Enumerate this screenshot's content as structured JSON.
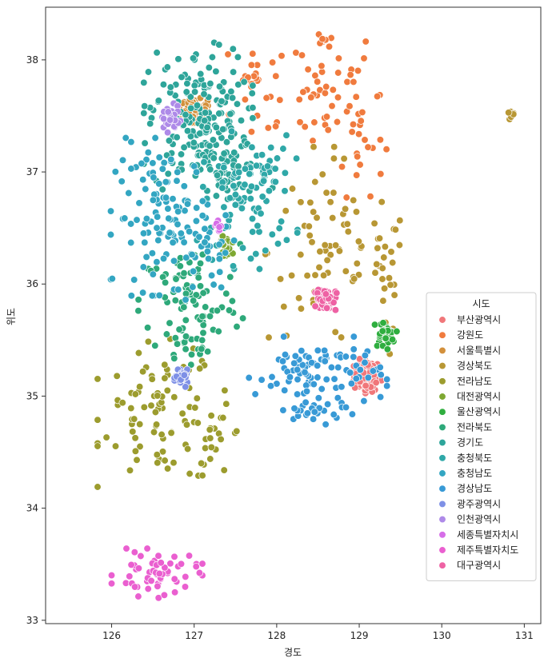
{
  "chart_data": {
    "type": "scatter",
    "title": "",
    "xlabel": "경도",
    "ylabel": "위도",
    "xlim": [
      125.2,
      131.2
    ],
    "ylim": [
      32.97,
      38.47
    ],
    "xticks": [
      "126",
      "127",
      "128",
      "129",
      "130",
      "131"
    ],
    "yticks": [
      "33",
      "34",
      "35",
      "36",
      "37",
      "38"
    ],
    "grid": false,
    "legend": {
      "title": "시도",
      "placement": "lower-right",
      "items": [
        {
          "name": "부산광역시",
          "color": "#f0777a"
        },
        {
          "name": "강원도",
          "color": "#f07b3e"
        },
        {
          "name": "서울특별시",
          "color": "#d3903b"
        },
        {
          "name": "경상북도",
          "color": "#b89734"
        },
        {
          "name": "전라남도",
          "color": "#9c9c2e"
        },
        {
          "name": "대전광역시",
          "color": "#7ea832"
        },
        {
          "name": "울산광역시",
          "color": "#2fae3f"
        },
        {
          "name": "전라북도",
          "color": "#2ea97a"
        },
        {
          "name": "경기도",
          "color": "#2ea59a"
        },
        {
          "name": "충청북도",
          "color": "#2fa8a8"
        },
        {
          "name": "충청남도",
          "color": "#33a6c2"
        },
        {
          "name": "경상남도",
          "color": "#389ad6"
        },
        {
          "name": "광주광역시",
          "color": "#7e90e6"
        },
        {
          "name": "인천광역시",
          "color": "#ae8ae8"
        },
        {
          "name": "세종특별자치시",
          "color": "#d66ee8"
        },
        {
          "name": "제주특별자치도",
          "color": "#ea5fd0"
        },
        {
          "name": "대구광역시",
          "color": "#ee62a4"
        }
      ]
    },
    "series": [
      {
        "name": "부산광역시",
        "clusters": [
          {
            "cx": 129.1,
            "cy": 35.18,
            "sx": 0.08,
            "sy": 0.07,
            "n": 110
          }
        ]
      },
      {
        "name": "강원도",
        "clusters": [
          {
            "cx": 128.4,
            "cy": 37.75,
            "sx": 0.45,
            "sy": 0.28,
            "n": 55
          },
          {
            "cx": 129.0,
            "cy": 37.3,
            "sx": 0.15,
            "sy": 0.25,
            "n": 22
          },
          {
            "cx": 127.7,
            "cy": 37.8,
            "sx": 0.08,
            "sy": 0.07,
            "n": 14
          },
          {
            "cx": 128.6,
            "cy": 38.18,
            "sx": 0.05,
            "sy": 0.04,
            "n": 8
          }
        ]
      },
      {
        "name": "서울특별시",
        "clusters": [
          {
            "cx": 127.0,
            "cy": 37.55,
            "sx": 0.08,
            "sy": 0.05,
            "n": 95
          }
        ]
      },
      {
        "name": "경상북도",
        "clusters": [
          {
            "cx": 128.6,
            "cy": 36.3,
            "sx": 0.35,
            "sy": 0.42,
            "n": 70
          },
          {
            "cx": 129.3,
            "cy": 36.1,
            "sx": 0.12,
            "sy": 0.3,
            "n": 25
          },
          {
            "cx": 130.85,
            "cy": 37.5,
            "sx": 0.03,
            "sy": 0.02,
            "n": 6
          }
        ]
      },
      {
        "name": "전라남도",
        "clusters": [
          {
            "cx": 126.6,
            "cy": 34.85,
            "sx": 0.35,
            "sy": 0.3,
            "n": 85
          },
          {
            "cx": 127.3,
            "cy": 34.6,
            "sx": 0.15,
            "sy": 0.15,
            "n": 20
          }
        ]
      },
      {
        "name": "대전광역시",
        "clusters": [
          {
            "cx": 127.38,
            "cy": 36.34,
            "sx": 0.04,
            "sy": 0.04,
            "n": 30
          }
        ]
      },
      {
        "name": "울산광역시",
        "clusters": [
          {
            "cx": 129.3,
            "cy": 35.55,
            "sx": 0.07,
            "sy": 0.06,
            "n": 30
          }
        ]
      },
      {
        "name": "전라북도",
        "clusters": [
          {
            "cx": 126.95,
            "cy": 35.85,
            "sx": 0.3,
            "sy": 0.25,
            "n": 80
          },
          {
            "cx": 127.0,
            "cy": 35.5,
            "sx": 0.2,
            "sy": 0.1,
            "n": 20
          }
        ]
      },
      {
        "name": "경기도",
        "clusters": [
          {
            "cx": 127.05,
            "cy": 37.45,
            "sx": 0.3,
            "sy": 0.32,
            "n": 190
          },
          {
            "cx": 127.4,
            "cy": 37.0,
            "sx": 0.25,
            "sy": 0.15,
            "n": 40
          }
        ]
      },
      {
        "name": "충청북도",
        "clusters": [
          {
            "cx": 127.65,
            "cy": 36.75,
            "sx": 0.28,
            "sy": 0.28,
            "n": 75
          },
          {
            "cx": 127.8,
            "cy": 37.0,
            "sx": 0.2,
            "sy": 0.1,
            "n": 20
          }
        ]
      },
      {
        "name": "충청남도",
        "clusters": [
          {
            "cx": 126.65,
            "cy": 36.6,
            "sx": 0.3,
            "sy": 0.32,
            "n": 110
          },
          {
            "cx": 127.15,
            "cy": 36.3,
            "sx": 0.2,
            "sy": 0.2,
            "n": 30
          }
        ]
      },
      {
        "name": "경상남도",
        "clusters": [
          {
            "cx": 128.5,
            "cy": 35.2,
            "sx": 0.38,
            "sy": 0.15,
            "n": 95
          },
          {
            "cx": 128.5,
            "cy": 34.88,
            "sx": 0.25,
            "sy": 0.06,
            "n": 25
          }
        ]
      },
      {
        "name": "광주광역시",
        "clusters": [
          {
            "cx": 126.85,
            "cy": 35.16,
            "sx": 0.04,
            "sy": 0.035,
            "n": 35
          }
        ]
      },
      {
        "name": "인천광역시",
        "clusters": [
          {
            "cx": 126.7,
            "cy": 37.48,
            "sx": 0.06,
            "sy": 0.06,
            "n": 40
          }
        ]
      },
      {
        "name": "세종특별자치시",
        "clusters": [
          {
            "cx": 127.28,
            "cy": 36.5,
            "sx": 0.03,
            "sy": 0.03,
            "n": 10
          }
        ]
      },
      {
        "name": "제주특별자치도",
        "clusters": [
          {
            "cx": 126.55,
            "cy": 33.42,
            "sx": 0.25,
            "sy": 0.1,
            "n": 55
          }
        ]
      },
      {
        "name": "대구광역시",
        "clusters": [
          {
            "cx": 128.6,
            "cy": 35.86,
            "sx": 0.06,
            "sy": 0.05,
            "n": 70
          }
        ]
      }
    ]
  }
}
